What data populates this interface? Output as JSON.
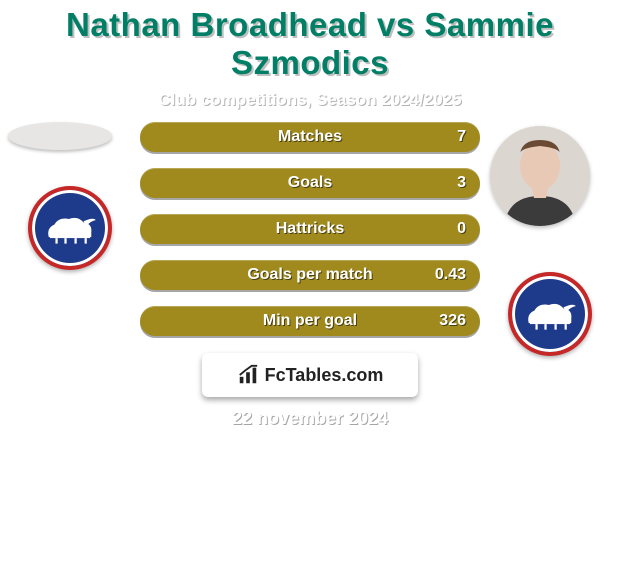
{
  "colors": {
    "title": "#007f66",
    "subtitle": "#ffffff",
    "pill_bg": "#a08a1e",
    "label": "#ffffff",
    "value": "#ffffff",
    "date": "#ffffff",
    "brand_text": "#222222",
    "crest_bg": "#1e3a8a",
    "crest_border": "#c62828",
    "background": "#ffffff"
  },
  "typography": {
    "title_size": 33,
    "subtitle_size": 17,
    "label_size": 16,
    "value_size": 16,
    "brand_size": 18,
    "date_size": 18
  },
  "header": {
    "title": "Nathan Broadhead vs Sammie Szmodics",
    "subtitle": "Club competitions, Season 2024/2025"
  },
  "stats": [
    {
      "label": "Matches",
      "value": "7"
    },
    {
      "label": "Goals",
      "value": "3"
    },
    {
      "label": "Hattricks",
      "value": "0"
    },
    {
      "label": "Goals per match",
      "value": "0.43"
    },
    {
      "label": "Min per goal",
      "value": "326"
    }
  ],
  "brand": {
    "text": "FcTables.com",
    "icon": "bars-icon"
  },
  "date": "22 november 2024"
}
